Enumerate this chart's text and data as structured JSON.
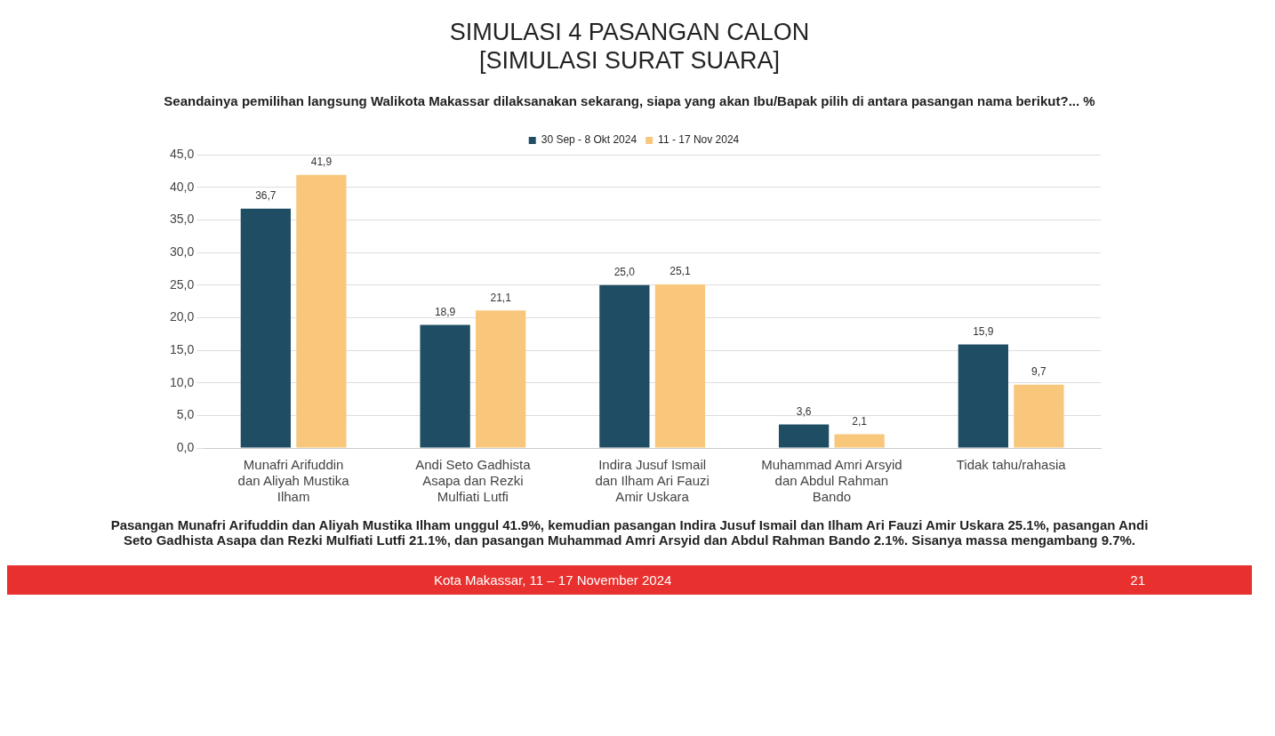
{
  "chart_data": {
    "type": "bar",
    "title": "SIMULASI 4 PASANGAN CALON\n[SIMULASI SURAT SUARA]",
    "subtitle": "Seandainya pemilihan langsung Walikota Makassar dilaksanakan sekarang, siapa yang akan Ibu/Bapak pilih di antara pasangan nama berikut?... %",
    "categories": [
      "Munafri Arifuddin dan Aliyah Mustika Ilham",
      "Andi Seto Gadhista Asapa dan Rezki Mulfiati Lutfi",
      "Indira Jusuf Ismail dan Ilham Ari Fauzi Amir Uskara",
      "Muhammad Amri Arsyid dan Abdul Rahman Bando",
      "Tidak tahu/rahasia"
    ],
    "series": [
      {
        "name": "30 Sep - 8 Okt 2024",
        "color": "#1f4e64",
        "values": [
          36.7,
          18.9,
          25.0,
          3.6,
          15.9
        ],
        "value_labels": [
          "36,7",
          "18,9",
          "25,0",
          "3,6",
          "15,9"
        ]
      },
      {
        "name": "11 - 17 Nov 2024",
        "color": "#f8c77c",
        "values": [
          41.9,
          21.1,
          25.1,
          2.1,
          9.7
        ],
        "value_labels": [
          "41,9",
          "21,1",
          "25,1",
          "2,1",
          "9,7"
        ]
      }
    ],
    "ylim": [
      0,
      45
    ],
    "yticks": [
      {
        "value": 0,
        "label": "0,0"
      },
      {
        "value": 5,
        "label": "5,0"
      },
      {
        "value": 10,
        "label": "10,0"
      },
      {
        "value": 15,
        "label": "15,0"
      },
      {
        "value": 20,
        "label": "20,0"
      },
      {
        "value": 25,
        "label": "25,0"
      },
      {
        "value": 30,
        "label": "30,0"
      },
      {
        "value": 35,
        "label": "35,0"
      },
      {
        "value": 40,
        "label": "40,0"
      },
      {
        "value": 45,
        "label": "45,0"
      }
    ],
    "grid": "y",
    "legend": "top",
    "annotations": [
      "Pasangan Munafri Arifuddin dan Aliyah Mustika Ilham unggul 41.9%, kemudian pasangan Indira Jusuf Ismail dan Ilham Ari Fauzi Amir Uskara 25.1%, pasangan Andi Seto Gadhista Asapa dan Rezki Mulfiati Lutfi 21.1%, dan pasangan Muhammad Amri Arsyid dan Abdul Rahman Bando 2.1%. Sisanya massa mengambang 9.7%.",
      "Kota Makassar, 11 – 17 November 2024",
      "21"
    ]
  }
}
